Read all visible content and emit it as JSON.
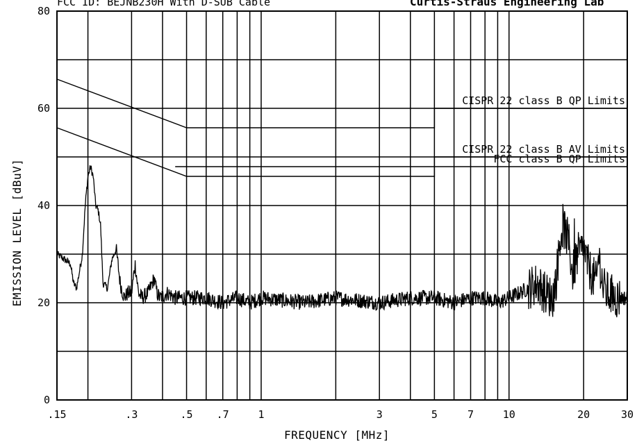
{
  "chart_data": {
    "type": "line",
    "title": "FCC ID: BEJNB230H  With D-SUB Cable",
    "title_right": "Curtis-Straus Engineering Lab",
    "xlabel": "FREQUENCY [MHz]",
    "ylabel": "EMISSION LEVEL [dBuV]",
    "x_scale": "log",
    "xlim": [
      0.15,
      30
    ],
    "ylim": [
      0,
      80
    ],
    "grid": true,
    "y_ticks": [
      0,
      20,
      40,
      60,
      80
    ],
    "y_tick_labels": [
      "0",
      "20",
      "40",
      "60",
      "80"
    ],
    "x_ticks": [
      0.15,
      0.3,
      0.5,
      0.7,
      1,
      3,
      5,
      7,
      10,
      20,
      30
    ],
    "x_tick_labels": [
      ".15",
      ".3",
      ".5",
      ".7",
      "1",
      "3",
      "5",
      "7",
      "10",
      "20",
      "30"
    ],
    "x_grid": [
      0.2,
      0.3,
      0.4,
      0.5,
      0.6,
      0.7,
      0.8,
      0.9,
      1,
      2,
      3,
      4,
      5,
      6,
      7,
      8,
      9,
      10,
      20,
      30
    ],
    "limit_lines": [
      {
        "name": "CISPR 22 class B QP Limits",
        "points": [
          [
            0.15,
            66
          ],
          [
            0.5,
            56
          ],
          [
            5,
            56
          ],
          [
            5,
            60
          ],
          [
            30,
            60
          ]
        ]
      },
      {
        "name": "CISPR 22 class B AV Limits",
        "points": [
          [
            0.15,
            56
          ],
          [
            0.5,
            46
          ],
          [
            5,
            46
          ],
          [
            5,
            50
          ],
          [
            30,
            50
          ]
        ]
      },
      {
        "name": "FCC class B QP Limits",
        "points": [
          [
            0.45,
            48
          ],
          [
            30,
            48
          ]
        ]
      }
    ],
    "series": [
      {
        "x": [
          0.15,
          0.16,
          0.17,
          0.175,
          0.18,
          0.19,
          0.195,
          0.2,
          0.205,
          0.21,
          0.215,
          0.22,
          0.225,
          0.23,
          0.24,
          0.25,
          0.26,
          0.27,
          0.28,
          0.29,
          0.3,
          0.31,
          0.32,
          0.33,
          0.35,
          0.37,
          0.38,
          0.39,
          0.42,
          0.45,
          0.5,
          0.6,
          0.7,
          0.8,
          0.9,
          1.0,
          1.5,
          2.0,
          3.0,
          4.0,
          5.0,
          6.0,
          7.0,
          8.0,
          9.0,
          10.0,
          11.0,
          12.0,
          13.0,
          14.0,
          15.0,
          15.5,
          16.0,
          16.5,
          17.0,
          17.5,
          18.0,
          19.0,
          20.0,
          21.0,
          22.0,
          22.5,
          23.0,
          24.0,
          25.0,
          27.0,
          30.0
        ],
        "y": [
          30,
          29,
          28,
          24,
          23,
          30,
          40,
          46,
          48,
          46,
          40,
          39,
          36,
          24,
          23,
          29,
          31,
          24,
          21,
          22,
          22,
          28,
          22,
          21,
          22,
          25,
          22,
          21,
          22,
          21,
          21,
          21,
          20,
          21,
          20,
          21,
          20,
          21,
          20,
          21,
          21,
          20,
          21,
          21,
          20,
          21,
          22,
          23,
          24,
          22,
          21,
          25,
          32,
          36,
          34,
          32,
          26,
          30,
          31,
          27,
          25,
          24,
          30,
          23,
          22,
          21,
          21
        ]
      }
    ]
  }
}
